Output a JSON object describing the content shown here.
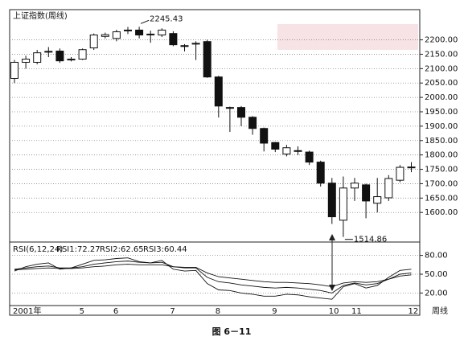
{
  "chart_data": [
    {
      "type": "candlestick",
      "title": "上证指数(周线)",
      "open": [
        2066,
        2122,
        2122,
        2158,
        2161,
        2130,
        2133,
        2172,
        2212,
        2205,
        2232,
        2234,
        2220,
        2217,
        2222,
        2180,
        2188,
        2194,
        2071,
        1965,
        1965,
        1931,
        1892,
        1843,
        1803,
        1815,
        1810,
        1775,
        1702,
        1573,
        1685,
        1696,
        1632,
        1651,
        1712,
        1758
      ],
      "high": [
        2130,
        2145,
        2165,
        2175,
        2170,
        2140,
        2170,
        2222,
        2225,
        2235,
        2245,
        2245.43,
        2232,
        2240,
        2230,
        2185,
        2195,
        2200,
        2075,
        1968,
        1970,
        1935,
        1895,
        1845,
        1835,
        1830,
        1815,
        1780,
        1720,
        1725,
        1720,
        1700,
        1720,
        1730,
        1765,
        1775
      ],
      "low": [
        2050,
        2100,
        2115,
        2140,
        2120,
        2125,
        2130,
        2165,
        2205,
        2195,
        2220,
        2205,
        2190,
        2210,
        2178,
        2160,
        2130,
        2068,
        1930,
        1880,
        1900,
        1870,
        1812,
        1810,
        1795,
        1800,
        1765,
        1690,
        1560,
        1514.86,
        1640,
        1580,
        1600,
        1640,
        1705,
        1740
      ],
      "close": [
        2122,
        2133,
        2155,
        2160,
        2127,
        2133,
        2166,
        2217,
        2218,
        2228,
        2234,
        2217,
        2219,
        2234,
        2183,
        2177,
        2186,
        2071,
        1970,
        1962,
        1931,
        1892,
        1841,
        1820,
        1825,
        1814,
        1775,
        1702,
        1585,
        1685,
        1702,
        1640,
        1655,
        1718,
        1757,
        1756
      ],
      "up_color": "#ffffff",
      "down_color": "#111111",
      "ylim": [
        1500,
        2305
      ],
      "yticks": [
        {
          "value": 1600,
          "label": "1600.00"
        },
        {
          "value": 1650,
          "label": "1650.00"
        },
        {
          "value": 1700,
          "label": "1700.00"
        },
        {
          "value": 1750,
          "label": "1750.00"
        },
        {
          "value": 1800,
          "label": "1800.00"
        },
        {
          "value": 1850,
          "label": "1850.00"
        },
        {
          "value": 1900,
          "label": "1900.00"
        },
        {
          "value": 1950,
          "label": "1950.00"
        },
        {
          "value": 2000,
          "label": "2000.00"
        },
        {
          "value": 2050,
          "label": "2050.00"
        },
        {
          "value": 2100,
          "label": "2100.00"
        },
        {
          "value": 2150,
          "label": "2150.00"
        },
        {
          "value": 2200,
          "label": "2200.00"
        }
      ],
      "grid": true,
      "annotations": [
        {
          "label": "2245.43",
          "index": 11,
          "value": 2245.43
        },
        {
          "label": "1514.86",
          "index": 29,
          "value": 1514.86
        }
      ]
    },
    {
      "type": "line",
      "title": "RSI(6,12,24)",
      "categories": [
        "2001年",
        null,
        null,
        null,
        null,
        null,
        "5",
        null,
        null,
        "6",
        null,
        null,
        null,
        null,
        "7",
        null,
        null,
        null,
        "8",
        null,
        null,
        null,
        null,
        "9",
        null,
        null,
        null,
        null,
        "10",
        null,
        "11",
        null,
        null,
        null,
        null,
        "12"
      ],
      "xlabel": "周线",
      "series": [
        {
          "name": "RSI1:72.27",
          "color": "#111111",
          "values": [
            55,
            62,
            66,
            68,
            58,
            60,
            66,
            72,
            73,
            75,
            76,
            70,
            68,
            72,
            58,
            55,
            56,
            35,
            25,
            24,
            20,
            18,
            15,
            15,
            18,
            17,
            14,
            12,
            10,
            30,
            35,
            28,
            32,
            45,
            56,
            58
          ]
        },
        {
          "name": "RSI2:62.65",
          "color": "#111111",
          "values": [
            58,
            60,
            62,
            63,
            60,
            60,
            62,
            66,
            68,
            70,
            71,
            69,
            68,
            69,
            62,
            60,
            60,
            45,
            38,
            36,
            33,
            31,
            29,
            28,
            29,
            28,
            26,
            24,
            20,
            32,
            36,
            33,
            35,
            42,
            50,
            52
          ]
        },
        {
          "name": "RSI3:60.44",
          "color": "#111111",
          "values": [
            57,
            58,
            59,
            60,
            59,
            59,
            60,
            62,
            63,
            65,
            66,
            65,
            65,
            65,
            62,
            61,
            61,
            52,
            46,
            44,
            42,
            40,
            38,
            37,
            37,
            36,
            35,
            33,
            30,
            36,
            38,
            37,
            38,
            42,
            47,
            49
          ]
        }
      ],
      "ylim": [
        0,
        100
      ],
      "yticks": [
        {
          "value": 20,
          "label": "20.00"
        },
        {
          "value": 50,
          "label": "50.00"
        },
        {
          "value": 80,
          "label": "80.00"
        }
      ],
      "grid": true
    },
    {
      "caption": "图 6－11"
    }
  ]
}
